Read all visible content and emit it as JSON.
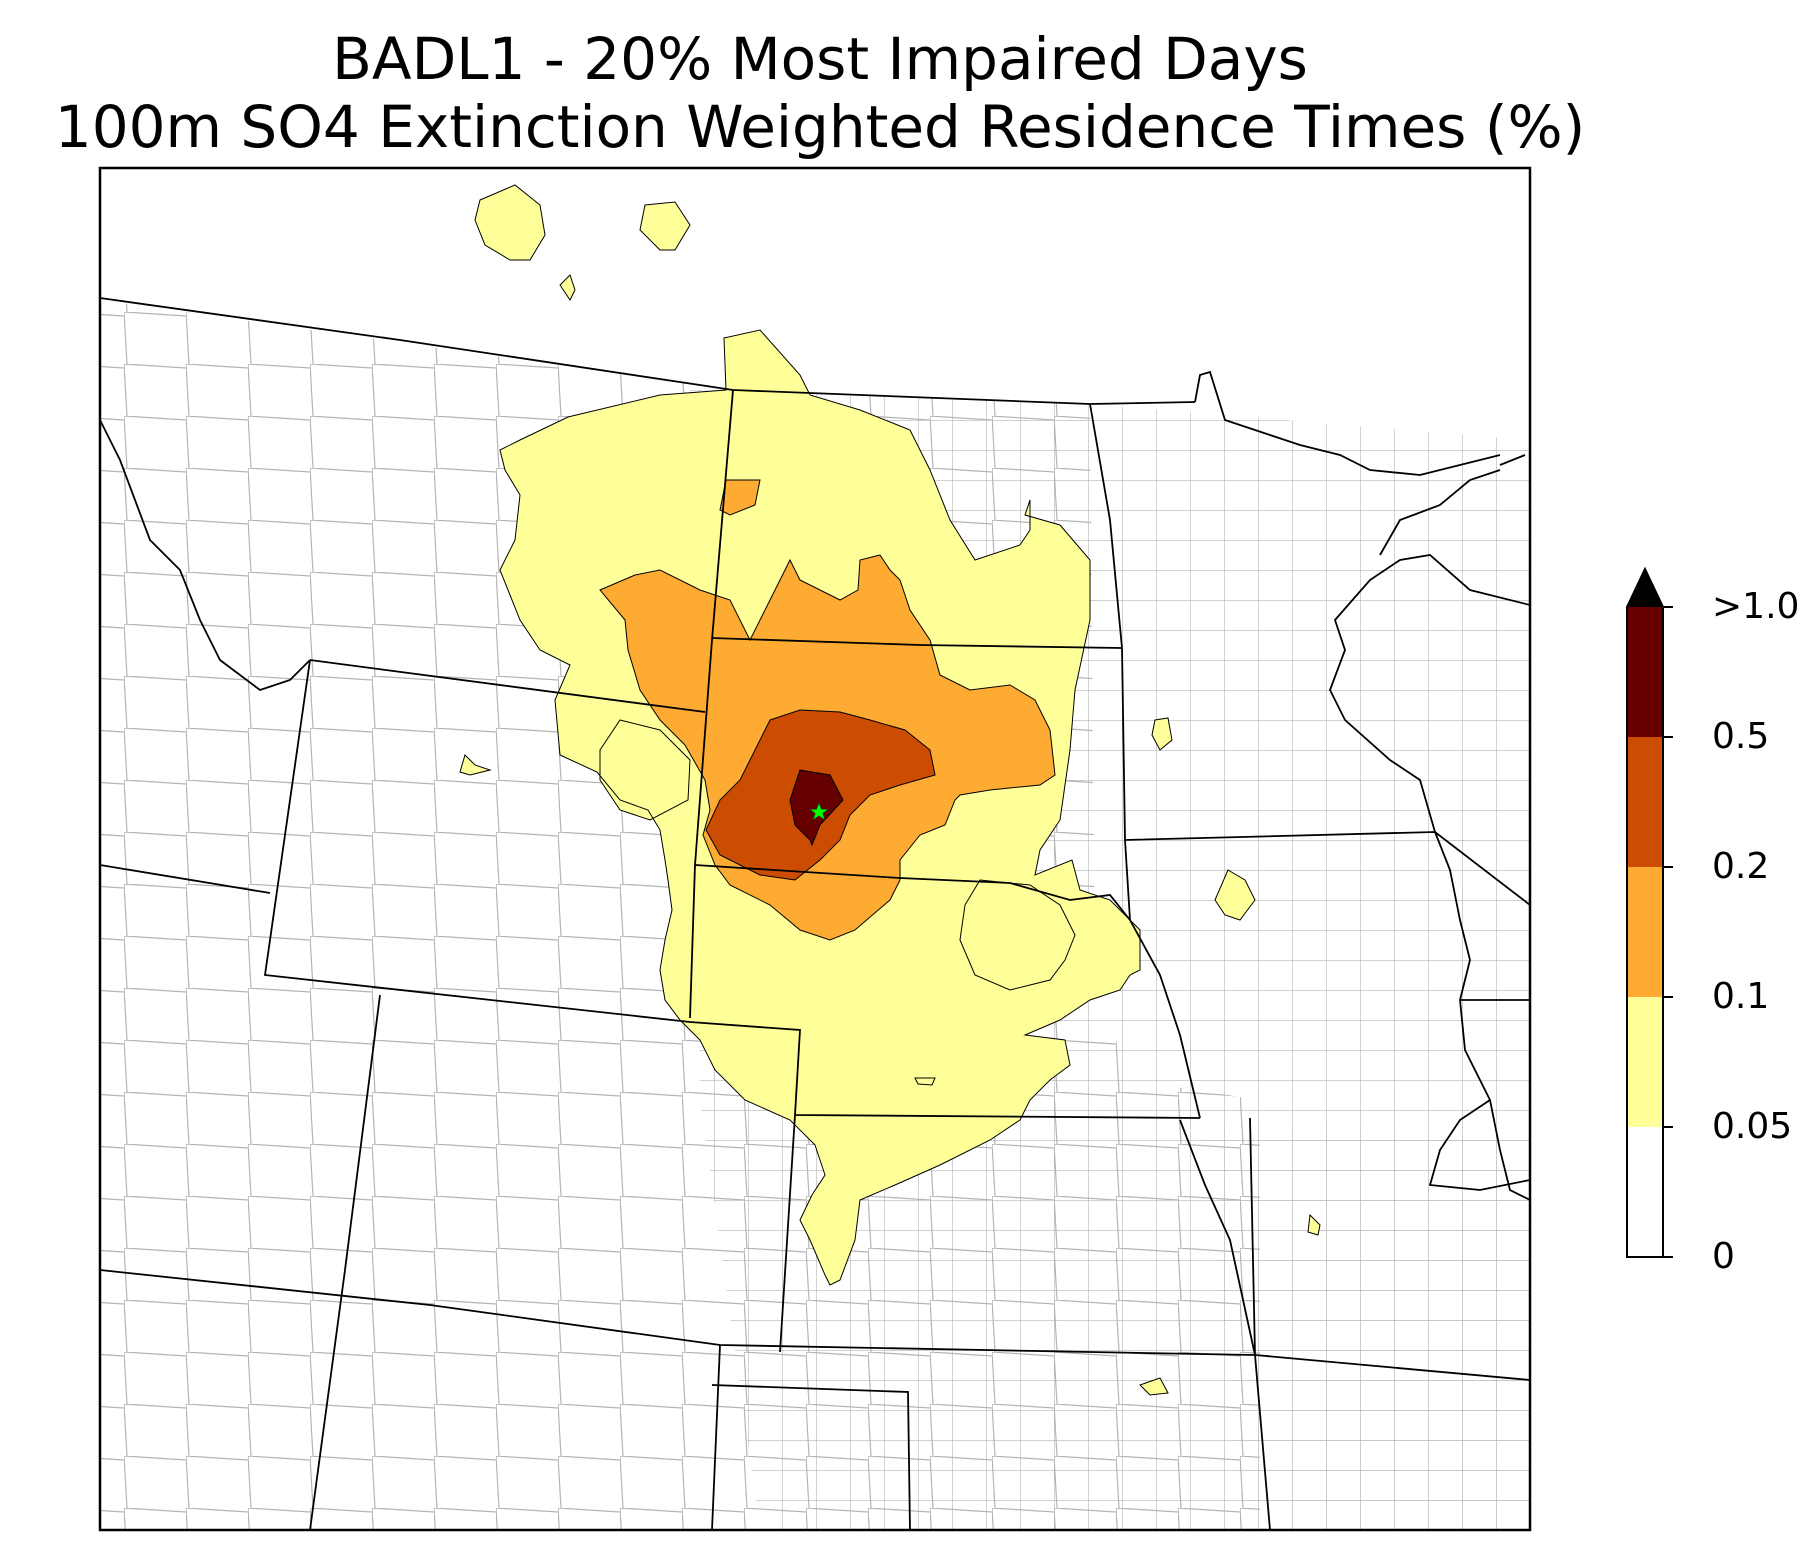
{
  "title": {
    "line1": "BADL1 - 20% Most Impaired Days",
    "line2": "100m SO4 Extinction Weighted Residence Times (%)"
  },
  "colorbar": {
    "levels": [
      0,
      0.05,
      0.1,
      0.2,
      0.5,
      1.0
    ],
    "tick_labels": [
      "0",
      "0.05",
      "0.1",
      "0.2",
      "0.5",
      ">1.0"
    ],
    "colors": [
      "#ffffff",
      "#ffff99",
      "#fdab33",
      "#cc4c02",
      "#660000",
      "#000000"
    ],
    "extend": "max"
  },
  "map": {
    "site": "BADL1",
    "site_marker_color": "#00ff00",
    "state_line_color": "#000000",
    "county_line_color": "#aaaaaa"
  }
}
